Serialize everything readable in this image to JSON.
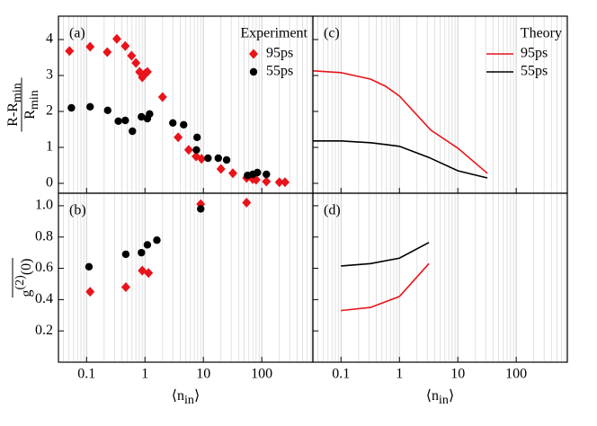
{
  "chart_data": [
    {
      "type": "scatter",
      "panel_label": "(a)",
      "legend_title": "Experiment",
      "legend": "upper right",
      "ylabel": {
        "num": "R-R",
        "num_sub": "min",
        "den": "R",
        "den_sub": "min"
      },
      "log_x": true,
      "grid": "x",
      "show_xtick_labels": false,
      "show_ytick_labels": true,
      "xlim": [
        0.033,
        750
      ],
      "xticks": [
        0.1,
        1,
        10,
        100
      ],
      "ylim": [
        -0.275,
        4.65
      ],
      "yticks": [
        0,
        1,
        2,
        3,
        4
      ],
      "series": [
        {
          "name": "95ps",
          "color": "#e8141b",
          "marker": "diamond",
          "x": [
            0.051,
            0.115,
            0.226,
            0.33,
            0.46,
            0.59,
            0.7,
            0.81,
            0.9,
            1.0,
            1.1,
            2.0,
            3.7,
            5.6,
            7.5,
            9.3,
            20,
            32,
            55,
            70,
            80,
            120,
            200,
            250
          ],
          "values": [
            3.68,
            3.8,
            3.65,
            4.02,
            3.82,
            3.55,
            3.35,
            3.1,
            2.95,
            3.05,
            3.1,
            2.4,
            1.28,
            0.93,
            0.75,
            0.68,
            0.4,
            0.28,
            0.15,
            0.12,
            0.1,
            0.05,
            0.03,
            0.03
          ]
        },
        {
          "name": "55ps",
          "color": "#000000",
          "marker": "circle",
          "x": [
            0.055,
            0.115,
            0.23,
            0.35,
            0.46,
            0.61,
            0.87,
            1.1,
            1.2,
            3.0,
            4.6,
            7.8,
            7.6,
            12,
            18,
            25,
            57,
            70,
            84,
            120
          ],
          "values": [
            2.1,
            2.13,
            2.03,
            1.73,
            1.75,
            1.45,
            1.85,
            1.8,
            1.93,
            1.68,
            1.63,
            1.28,
            0.93,
            0.7,
            0.7,
            0.65,
            0.22,
            0.25,
            0.3,
            0.25
          ]
        }
      ]
    },
    {
      "type": "line",
      "panel_label": "(c)",
      "legend_title": "Theory",
      "legend": "upper right",
      "log_x": true,
      "grid": "x",
      "show_xtick_labels": false,
      "show_ytick_labels": false,
      "xlim": [
        0.033,
        750
      ],
      "xticks": [
        0.1,
        1,
        10,
        100
      ],
      "ylim": [
        -0.275,
        4.65
      ],
      "yticks": [
        0,
        1,
        2,
        3,
        4
      ],
      "series": [
        {
          "name": "95ps",
          "color": "#e8141b",
          "x": [
            0.033,
            0.1,
            0.32,
            0.58,
            1,
            3.45,
            10,
            32
          ],
          "values": [
            3.13,
            3.08,
            2.9,
            2.7,
            2.43,
            1.48,
            0.98,
            0.28
          ]
        },
        {
          "name": "55ps",
          "color": "#000000",
          "x": [
            0.033,
            0.1,
            0.32,
            0.58,
            1,
            3.2,
            10,
            32
          ],
          "values": [
            1.18,
            1.18,
            1.13,
            1.08,
            1.03,
            0.72,
            0.35,
            0.15
          ]
        }
      ]
    },
    {
      "type": "scatter",
      "panel_label": "(b)",
      "ylabel": {
        "text": "g",
        "sup": "(2)",
        "after": "(0)"
      },
      "xlabel": {
        "open": "⟨n",
        "sub": "in",
        "close": "⟩"
      },
      "log_x": true,
      "grid": "x",
      "show_xtick_labels": true,
      "show_ytick_labels": true,
      "xlim": [
        0.033,
        750
      ],
      "xticks": [
        0.1,
        1,
        10,
        100
      ],
      "ylim": [
        0,
        1.08
      ],
      "yticks": [
        0.2,
        0.4,
        0.6,
        0.8,
        {
          "value": 1,
          "label": "1.0"
        }
      ],
      "series": [
        {
          "name": "95ps",
          "color": "#e8141b",
          "marker": "diamond",
          "x": [
            0.115,
            0.47,
            0.9,
            1.15,
            9,
            55
          ],
          "values": [
            0.45,
            0.48,
            0.585,
            0.57,
            1.01,
            1.02
          ]
        },
        {
          "name": "55ps",
          "color": "#000000",
          "marker": "circle",
          "x": [
            0.11,
            0.47,
            0.87,
            1.1,
            1.6,
            9
          ],
          "values": [
            0.61,
            0.69,
            0.7,
            0.75,
            0.78,
            0.98
          ]
        }
      ]
    },
    {
      "type": "line",
      "panel_label": "(d)",
      "xlabel": {
        "open": "⟨n",
        "sub": "in",
        "close": "⟩"
      },
      "log_x": true,
      "grid": "x",
      "show_xtick_labels": true,
      "show_ytick_labels": false,
      "xlim": [
        0.033,
        750
      ],
      "xticks": [
        0.1,
        1,
        10,
        100
      ],
      "ylim": [
        0,
        1.08
      ],
      "yticks": [
        0.2,
        0.4,
        0.6,
        0.8,
        {
          "value": 1,
          "label": "1.0"
        }
      ],
      "series": [
        {
          "name": "95ps",
          "color": "#e8141b",
          "x": [
            0.1,
            0.32,
            1,
            3.2
          ],
          "values": [
            0.33,
            0.35,
            0.42,
            0.63
          ]
        },
        {
          "name": "55ps",
          "color": "#000000",
          "x": [
            0.1,
            0.32,
            1,
            3.2
          ],
          "values": [
            0.615,
            0.63,
            0.665,
            0.765
          ]
        }
      ]
    }
  ]
}
